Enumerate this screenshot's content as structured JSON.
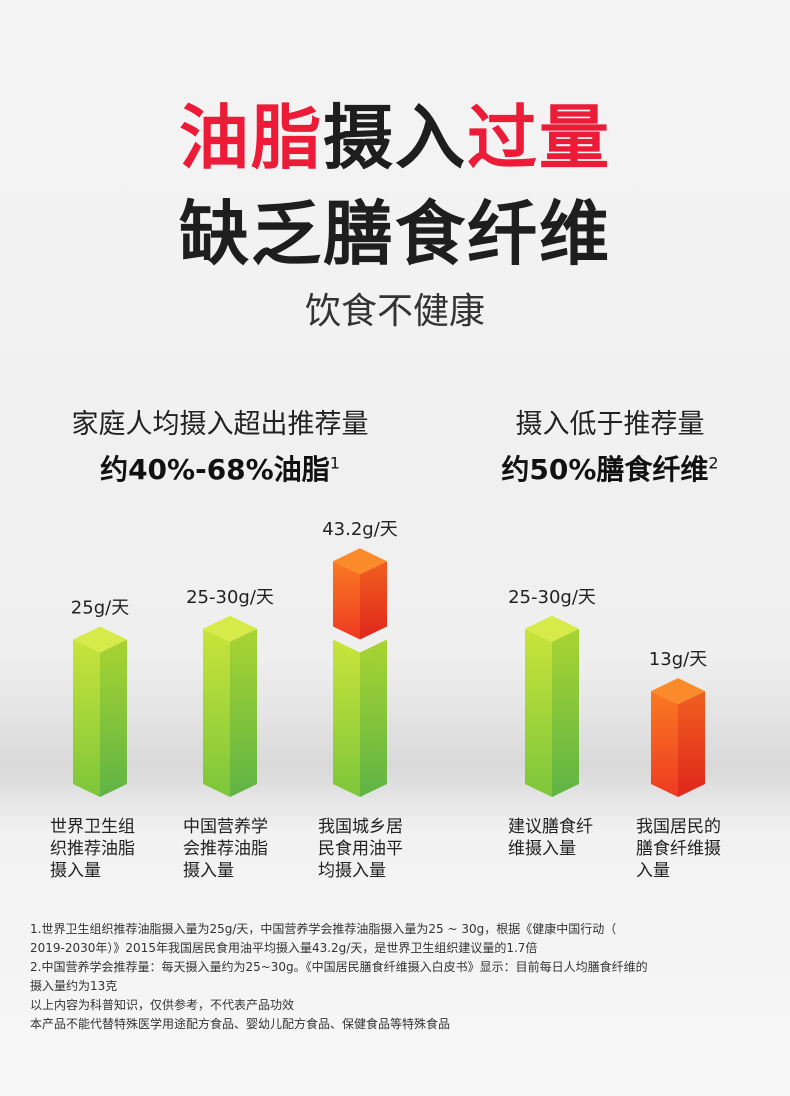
{
  "headline": {
    "line1_red_a": "油脂",
    "line1_black": "摄入",
    "line1_red_b": "过量",
    "line2": "缺乏膳食纤维",
    "subtitle": "饮食不健康"
  },
  "left_panel": {
    "heading": "家庭人均摄入超出推荐量",
    "stat": "约40%-68%油脂",
    "footnote_mark": "1"
  },
  "right_panel": {
    "heading": "摄入低于推荐量",
    "stat": "约50%膳食纤维",
    "footnote_mark": "2"
  },
  "colors": {
    "red": "#ec1b37",
    "green_bar": "#9ad13a",
    "orange_bar": "#f4511e"
  },
  "chart_data": {
    "type": "bar",
    "unit": "g/天",
    "categories": [
      "世界卫生组织推荐油脂摄入量",
      "中国营养学会推荐油脂摄入量",
      "我国城乡居民食用油平均摄入量",
      "建议膳食纤维摄入量",
      "我国居民的膳食纤维摄入量"
    ],
    "values": [
      25,
      27.5,
      43.2,
      27.5,
      13
    ],
    "data_labels": [
      "25g/天",
      "25-30g/天",
      "43.2g/天",
      "25-30g/天",
      "13g/天"
    ],
    "bar_colors": [
      "green",
      "green",
      "green+orange excess above 25",
      "green",
      "orange"
    ]
  },
  "captions": [
    "世界卫生组\n织推荐油脂\n摄入量",
    "中国营养学\n会推荐油脂\n摄入量",
    "我国城乡居\n民食用油平\n均摄入量",
    "建议膳食纤\n维摄入量",
    "我国居民的\n膳食纤维摄\n入量"
  ],
  "footnotes": [
    "1.世界卫生组织推荐油脂摄入量为25g/天，中国营养学会推荐油脂摄入量为25 ~ 30g，根据《健康中国行动（",
    "2019-2030年）》2015年我国居民食用油平均摄入量43.2g/天，是世界卫生组织建议量的1.7倍",
    "2.中国营养学会推荐量：每天摄入量约为25~30g。《中国居民膳食纤维摄入白皮书》显示：目前每日人均膳食纤维的",
    "摄入量约为13克",
    "以上内容为科普知识，仅供参考，不代表产品功效",
    "本产品不能代替特殊医学用途配方食品、婴幼儿配方食品、保健食品等特殊食品"
  ]
}
